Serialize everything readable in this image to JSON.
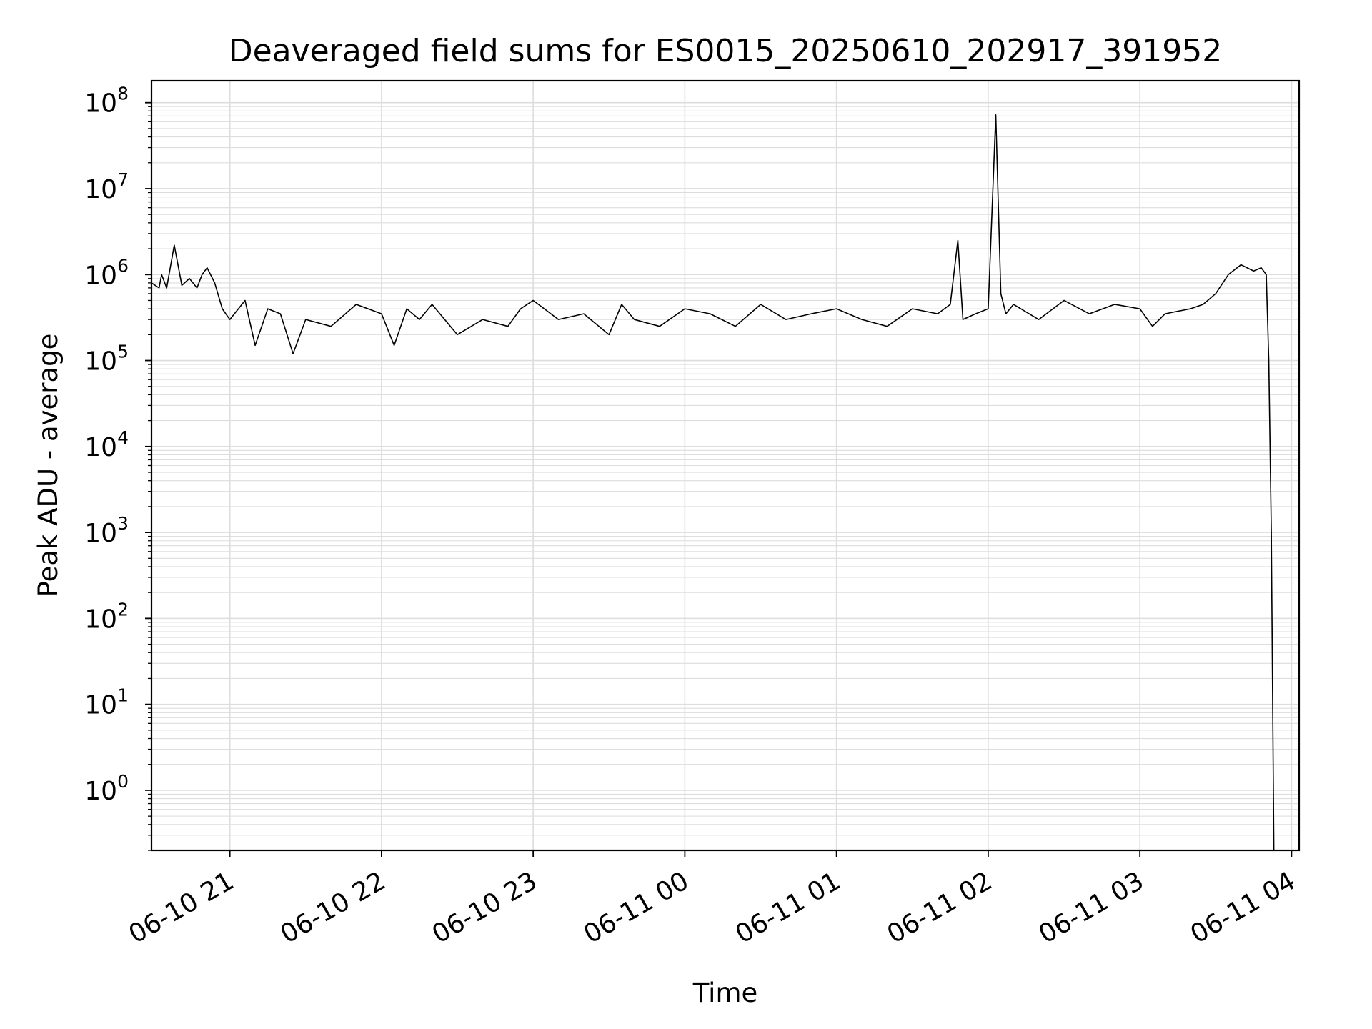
{
  "chart_data": {
    "type": "line",
    "title": "Deaveraged field sums for ES0015_20250610_202917_391952",
    "xlabel": "Time",
    "ylabel": "Peak ADU - average",
    "yscale": "log",
    "ylim": [
      0.2,
      180000000.0
    ],
    "xlim": [
      "2025-06-10 20:29:00",
      "2025-06-11 04:03:00"
    ],
    "grid": true,
    "line_color": "#000000",
    "grid_color": "#dddddd",
    "x_ticks": [
      {
        "value": "2025-06-10 21:00:00",
        "label": "06-10 21"
      },
      {
        "value": "2025-06-10 22:00:00",
        "label": "06-10 22"
      },
      {
        "value": "2025-06-10 23:00:00",
        "label": "06-10 23"
      },
      {
        "value": "2025-06-11 00:00:00",
        "label": "06-11 00"
      },
      {
        "value": "2025-06-11 01:00:00",
        "label": "06-11 01"
      },
      {
        "value": "2025-06-11 02:00:00",
        "label": "06-11 02"
      },
      {
        "value": "2025-06-11 03:00:00",
        "label": "06-11 03"
      },
      {
        "value": "2025-06-11 04:00:00",
        "label": "06-11 04"
      }
    ],
    "y_ticks": [
      {
        "value": 1,
        "base": "10",
        "exp": "0"
      },
      {
        "value": 10,
        "base": "10",
        "exp": "1"
      },
      {
        "value": 100,
        "base": "10",
        "exp": "2"
      },
      {
        "value": 1000,
        "base": "10",
        "exp": "3"
      },
      {
        "value": 10000,
        "base": "10",
        "exp": "4"
      },
      {
        "value": 100000,
        "base": "10",
        "exp": "5"
      },
      {
        "value": 1000000,
        "base": "10",
        "exp": "6"
      },
      {
        "value": 10000000,
        "base": "10",
        "exp": "7"
      },
      {
        "value": 100000000,
        "base": "10",
        "exp": "8"
      }
    ],
    "series": [
      {
        "x": [
          "2025-06-10 20:29:00",
          "2025-06-10 20:32:00",
          "2025-06-10 20:33:00",
          "2025-06-10 20:35:00",
          "2025-06-10 20:38:00",
          "2025-06-10 20:41:00",
          "2025-06-10 20:44:00",
          "2025-06-10 20:47:00",
          "2025-06-10 20:49:00",
          "2025-06-10 20:51:00",
          "2025-06-10 20:54:00",
          "2025-06-10 20:57:00",
          "2025-06-10 21:00:00",
          "2025-06-10 21:06:00",
          "2025-06-10 21:10:00",
          "2025-06-10 21:15:00",
          "2025-06-10 21:20:00",
          "2025-06-10 21:25:00",
          "2025-06-10 21:30:00",
          "2025-06-10 21:40:00",
          "2025-06-10 21:50:00",
          "2025-06-10 22:00:00",
          "2025-06-10 22:05:00",
          "2025-06-10 22:10:00",
          "2025-06-10 22:15:00",
          "2025-06-10 22:20:00",
          "2025-06-10 22:30:00",
          "2025-06-10 22:40:00",
          "2025-06-10 22:50:00",
          "2025-06-10 22:55:00",
          "2025-06-10 23:00:00",
          "2025-06-10 23:10:00",
          "2025-06-10 23:20:00",
          "2025-06-10 23:30:00",
          "2025-06-10 23:35:00",
          "2025-06-10 23:40:00",
          "2025-06-10 23:50:00",
          "2025-06-11 00:00:00",
          "2025-06-11 00:10:00",
          "2025-06-11 00:20:00",
          "2025-06-11 00:30:00",
          "2025-06-11 00:40:00",
          "2025-06-11 00:50:00",
          "2025-06-11 01:00:00",
          "2025-06-11 01:10:00",
          "2025-06-11 01:20:00",
          "2025-06-11 01:30:00",
          "2025-06-11 01:40:00",
          "2025-06-11 01:45:00",
          "2025-06-11 01:48:00",
          "2025-06-11 01:50:00",
          "2025-06-11 01:55:00",
          "2025-06-11 02:00:00",
          "2025-06-11 02:03:00",
          "2025-06-11 02:05:00",
          "2025-06-11 02:07:00",
          "2025-06-11 02:10:00",
          "2025-06-11 02:20:00",
          "2025-06-11 02:30:00",
          "2025-06-11 02:40:00",
          "2025-06-11 02:50:00",
          "2025-06-11 03:00:00",
          "2025-06-11 03:05:00",
          "2025-06-11 03:10:00",
          "2025-06-11 03:20:00",
          "2025-06-11 03:25:00",
          "2025-06-11 03:30:00",
          "2025-06-11 03:35:00",
          "2025-06-11 03:40:00",
          "2025-06-11 03:45:00",
          "2025-06-11 03:48:00",
          "2025-06-11 03:50:00",
          "2025-06-11 03:51:00",
          "2025-06-11 03:52:00",
          "2025-06-11 03:53:00"
        ],
        "y": [
          800000,
          700000,
          1000000,
          700000,
          2200000,
          750000,
          900000,
          700000,
          1000000,
          1200000,
          800000,
          400000,
          300000,
          500000,
          150000,
          400000,
          350000,
          120000,
          300000,
          250000,
          450000,
          350000,
          150000,
          400000,
          300000,
          450000,
          200000,
          300000,
          250000,
          400000,
          500000,
          300000,
          350000,
          200000,
          450000,
          300000,
          250000,
          400000,
          350000,
          250000,
          450000,
          300000,
          350000,
          400000,
          300000,
          250000,
          400000,
          350000,
          450000,
          2500000,
          300000,
          350000,
          400000,
          72000000,
          600000,
          350000,
          450000,
          300000,
          500000,
          350000,
          450000,
          400000,
          250000,
          350000,
          400000,
          450000,
          600000,
          1000000,
          1300000,
          1100000,
          1200000,
          1000000,
          100000,
          1000,
          0.2
        ]
      }
    ]
  }
}
